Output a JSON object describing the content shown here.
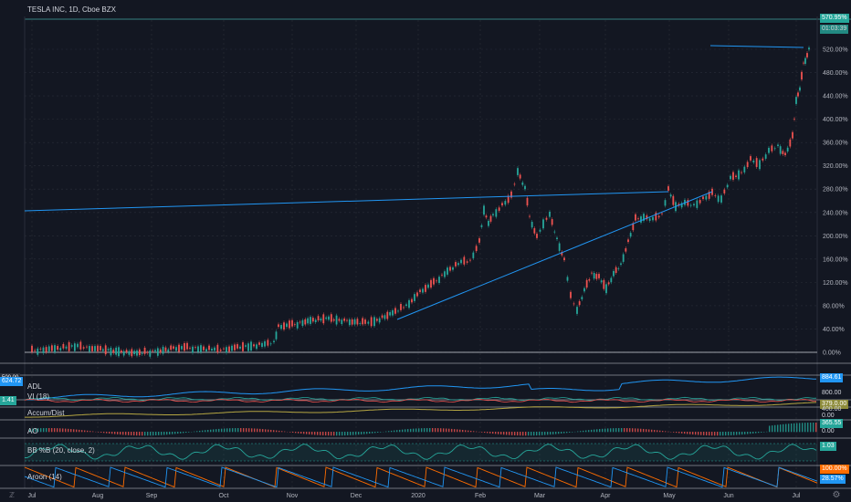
{
  "header": {
    "symbol_title": "TESLA INC, 1D, Cboe BZX"
  },
  "price_axis": {
    "labels": [
      "520.00%",
      "480.00%",
      "440.00%",
      "400.00%",
      "360.00%",
      "320.00%",
      "280.00%",
      "240.00%",
      "200.00%",
      "160.00%",
      "120.00%",
      "80.00%",
      "40.00%",
      "0.00%"
    ],
    "last_value": "570.95%",
    "countdown": "01:03:39"
  },
  "time_axis": {
    "labels": [
      "Jul",
      "Aug",
      "Sep",
      "Oct",
      "Nov",
      "Dec",
      "2020",
      "Feb",
      "Mar",
      "Apr",
      "May",
      "Jun",
      "Jul"
    ]
  },
  "panes": {
    "adl": {
      "title": "ADL",
      "left_value": "624.72",
      "right_label": "800.00",
      "badge": "884.61"
    },
    "vi": {
      "title": "VI (18)",
      "left_value": "1.41",
      "right_label": "400.00",
      "badge": "379.0.00"
    },
    "accum": {
      "title": "Accum/Dist",
      "right_label": "0.00"
    },
    "ao": {
      "title": "AO",
      "badge": "365.55",
      "right_label": "0.00"
    },
    "bb": {
      "title": "BB %B (20, close, 2)",
      "badge": "1.03"
    },
    "aroon": {
      "title": "Aroon (14)",
      "badge_top": "100.00%",
      "badge_bottom": "28.57%"
    }
  },
  "left_axis_top": "500.00",
  "icons": {
    "settings": "z-logo-icon",
    "time_settings": "gear-icon"
  },
  "colors": {
    "up": "#26a69a",
    "down": "#ef5350",
    "line": "#2196f3",
    "bg": "#131722"
  }
}
